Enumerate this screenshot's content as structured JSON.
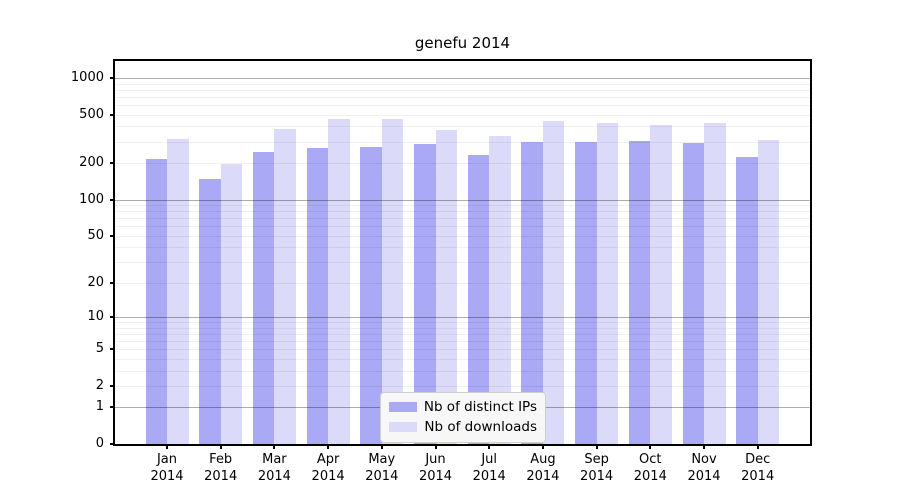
{
  "chart_data": {
    "type": "bar",
    "title": "genefu 2014",
    "categories": [
      "Jan 2014",
      "Feb 2014",
      "Mar 2014",
      "Apr 2014",
      "May 2014",
      "Jun 2014",
      "Jul 2014",
      "Aug 2014",
      "Sep 2014",
      "Oct 2014",
      "Nov 2014",
      "Dec 2014"
    ],
    "series": [
      {
        "name": "Nb of distinct IPs",
        "color": "#a9a9f6",
        "values": [
          215,
          147,
          247,
          268,
          271,
          288,
          234,
          298,
          299,
          303,
          292,
          224
        ]
      },
      {
        "name": "Nb of downloads",
        "color": "#dbdbf9",
        "values": [
          315,
          197,
          380,
          459,
          463,
          376,
          331,
          446,
          424,
          411,
          424,
          312
        ]
      }
    ],
    "xlabel": "",
    "ylabel": "",
    "y_axis": {
      "scale": "log1p",
      "tick_labels": [
        "1000",
        "500",
        "200",
        "100",
        "50",
        "20",
        "10",
        "5",
        "2",
        "1",
        "0"
      ],
      "tick_values": [
        1000,
        500,
        200,
        100,
        50,
        20,
        10,
        5,
        2,
        1,
        0
      ],
      "major_gridlines": [
        1000,
        100,
        10,
        1
      ],
      "minor_gridlines": [
        900,
        800,
        700,
        600,
        500,
        400,
        300,
        200,
        90,
        80,
        70,
        60,
        50,
        40,
        30,
        20,
        9,
        8,
        7,
        6,
        5,
        4,
        3,
        2
      ],
      "range": [
        0,
        1400
      ]
    },
    "grid": "horizontal",
    "legend_position": "bottom-center"
  },
  "colors": {
    "ips_bar": "#a9a9f6",
    "downloads_bar": "#dbdbf9",
    "major_grid": "rgba(0,0,0,0.32)",
    "minor_grid": "rgba(0,0,0,0.06)",
    "spine": "#000000",
    "legend_background": "#f7f7f7",
    "legend_border": "#cfcfcf"
  }
}
